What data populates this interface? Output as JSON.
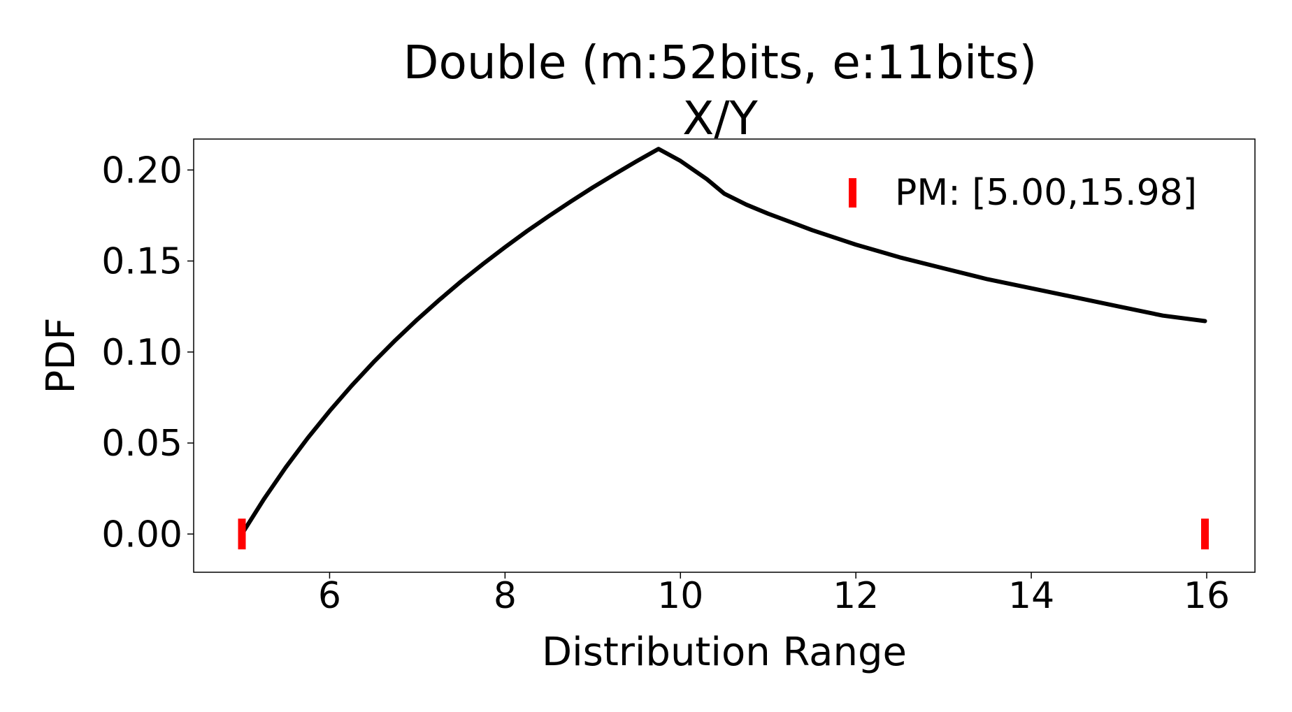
{
  "chart_data": {
    "type": "line",
    "title": "Double (m:52bits, e:11bits)",
    "subtitle": "X/Y",
    "xlabel": "Distribution Range",
    "ylabel": "PDF",
    "xlim": [
      4.45,
      16.55
    ],
    "ylim": [
      -0.021,
      0.217
    ],
    "xticks": [
      6,
      8,
      10,
      12,
      14,
      16
    ],
    "xtick_labels": [
      "6",
      "8",
      "10",
      "12",
      "14",
      "16"
    ],
    "yticks": [
      0.0,
      0.05,
      0.1,
      0.15,
      0.2
    ],
    "ytick_labels": [
      "0.00",
      "0.05",
      "0.10",
      "0.15",
      "0.20"
    ],
    "grid": false,
    "legend_position": "top-right",
    "series": [
      {
        "color": "#000000",
        "x": [
          5.0,
          5.25,
          5.5,
          5.75,
          6.0,
          6.25,
          6.5,
          6.75,
          7.0,
          7.25,
          7.5,
          7.75,
          8.0,
          8.25,
          8.5,
          8.75,
          9.0,
          9.25,
          9.5,
          9.75,
          10.0,
          10.3,
          10.5,
          10.75,
          11.0,
          11.25,
          11.5,
          11.75,
          12.0,
          12.5,
          13.0,
          13.5,
          14.0,
          14.5,
          15.0,
          15.5,
          15.98
        ],
        "y": [
          0.0,
          0.0191,
          0.0366,
          0.0527,
          0.0676,
          0.0814,
          0.0944,
          0.1065,
          0.1179,
          0.1286,
          0.1388,
          0.1484,
          0.1576,
          0.1664,
          0.1747,
          0.1827,
          0.1904,
          0.1977,
          0.2048,
          0.2116,
          0.205,
          0.195,
          0.187,
          0.181,
          0.176,
          0.1715,
          0.167,
          0.163,
          0.159,
          0.152,
          0.146,
          0.14,
          0.135,
          0.13,
          0.125,
          0.12,
          0.117
        ]
      }
    ],
    "markers": {
      "label": "PM: [5.00,15.98]",
      "color": "#ff0000",
      "x": [
        5.0,
        15.98
      ],
      "y": [
        0.0,
        0.0
      ]
    }
  }
}
